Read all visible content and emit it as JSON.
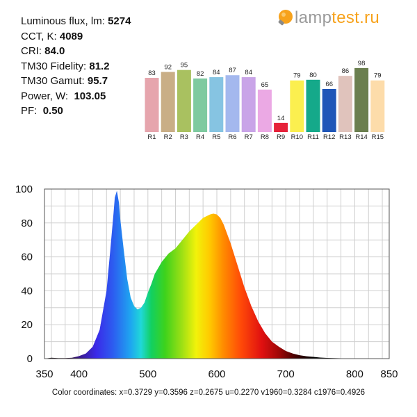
{
  "specs": [
    {
      "label": "Luminous flux, lm:",
      "value": "5274"
    },
    {
      "label": "CCT, K:",
      "value": "4089"
    },
    {
      "label": "CRI:",
      "value": "84.0"
    },
    {
      "label": "TM30 Fidelity:",
      "value": "81.2"
    },
    {
      "label": "TM30 Gamut:",
      "value": "95.7"
    },
    {
      "label": "Power, W:",
      "value": "103.05"
    },
    {
      "label": "PF:",
      "value": "0.50"
    }
  ],
  "logo": {
    "part1": "lamp",
    "part2": "test.ru",
    "icon": "bulb-icon",
    "accent_color": "#f7a21b",
    "text_color": "#9a9a9a"
  },
  "chart_data": [
    {
      "type": "bar",
      "categories": [
        "R1",
        "R2",
        "R3",
        "R4",
        "R5",
        "R6",
        "R7",
        "R8",
        "R9",
        "R10",
        "R11",
        "R12",
        "R13",
        "R14",
        "R15"
      ],
      "values": [
        83,
        92,
        95,
        82,
        84,
        87,
        84,
        65,
        14,
        79,
        80,
        66,
        86,
        98,
        79
      ],
      "colors": [
        "#e6a5ad",
        "#c9ae86",
        "#a9c160",
        "#7ecaa0",
        "#86c4e2",
        "#a4b8ee",
        "#c9a4e8",
        "#eba9e4",
        "#e6223a",
        "#fbef4f",
        "#15a98a",
        "#1f56b8",
        "#e0c3bc",
        "#6b7f4f",
        "#fddcaa"
      ],
      "ylim": [
        0,
        100
      ]
    },
    {
      "type": "area",
      "x": [
        350,
        360,
        370,
        380,
        390,
        400,
        410,
        420,
        430,
        440,
        445,
        450,
        452,
        455,
        458,
        460,
        465,
        470,
        475,
        480,
        485,
        490,
        495,
        500,
        505,
        510,
        520,
        530,
        540,
        550,
        560,
        570,
        580,
        590,
        595,
        600,
        605,
        610,
        620,
        630,
        640,
        650,
        660,
        670,
        680,
        690,
        700,
        710,
        720,
        730,
        740,
        750,
        760,
        770,
        780,
        790,
        800,
        810,
        820,
        830,
        840,
        850
      ],
      "y": [
        0,
        0.5,
        0.3,
        0.3,
        0.5,
        1.5,
        3,
        7,
        17,
        40,
        62,
        85,
        95,
        99,
        92,
        82,
        64,
        47,
        36,
        31,
        29,
        30,
        33,
        39,
        44,
        50,
        57,
        62,
        65,
        70,
        75,
        79,
        83,
        85,
        85.5,
        85,
        83,
        79,
        68,
        55,
        42,
        31,
        22,
        15,
        10,
        7,
        4.5,
        3,
        2,
        1.4,
        1,
        0.6,
        0.4,
        0.3,
        0.2,
        0.15,
        0.1,
        0.05,
        0.03,
        0.02,
        0.01,
        0
      ],
      "xlim": [
        350,
        850
      ],
      "ylim": [
        0,
        100
      ],
      "xticks": [
        350,
        400,
        500,
        600,
        700,
        800,
        850
      ],
      "yticks": [
        0,
        20,
        40,
        60,
        80,
        100
      ],
      "grid": true
    }
  ],
  "color_coordinates": "Color coordinates: x=0.3729 y=0.3596 z=0.2675 u=0.2270 v1960=0.3284 c1976=0.4926"
}
